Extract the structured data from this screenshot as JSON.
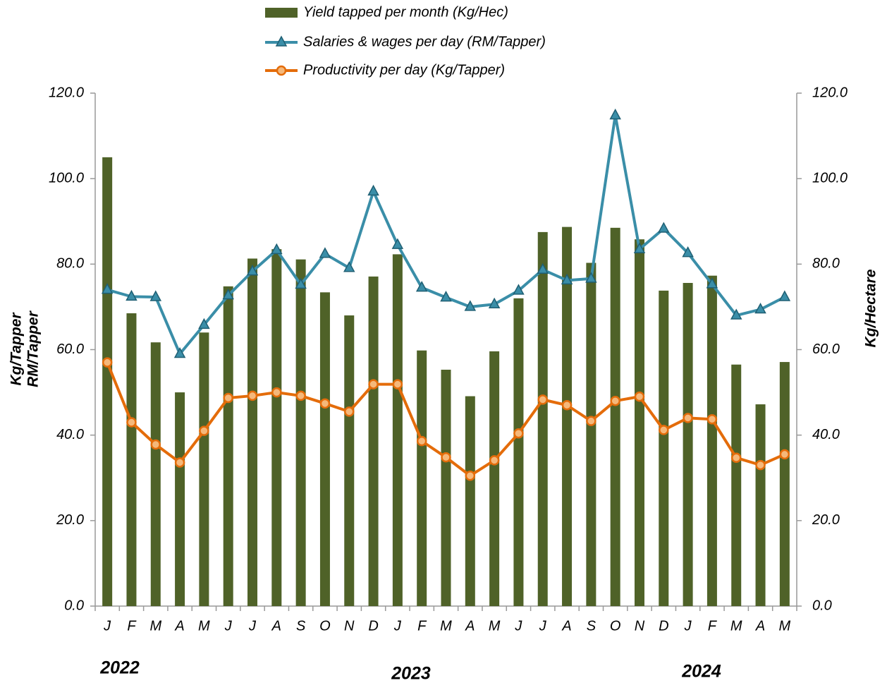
{
  "chart_data": {
    "type": "bar-line",
    "categories": [
      "J",
      "F",
      "M",
      "A",
      "M",
      "J",
      "J",
      "A",
      "S",
      "O",
      "N",
      "D",
      "J",
      "F",
      "M",
      "A",
      "M",
      "J",
      "J",
      "A",
      "S",
      "O",
      "N",
      "D",
      "J",
      "F",
      "M",
      "A",
      "M"
    ],
    "series": [
      {
        "name": "Yield tapped per month (Kg/Hec)",
        "type": "bar",
        "axis": "y2",
        "color": "#4f6228",
        "values": [
          105,
          68.5,
          61.7,
          50,
          64,
          74.8,
          81.3,
          83.5,
          81.1,
          73.4,
          68,
          77.1,
          82.3,
          59.8,
          55.3,
          49.1,
          59.6,
          72,
          87.5,
          88.7,
          80.3,
          88.5,
          85.8,
          73.8,
          75.6,
          77.3,
          56.5,
          47.2,
          57.1
        ]
      },
      {
        "name": "Salaries & wages per day (RM/Tapper)",
        "type": "line",
        "marker": "triangle",
        "color": "#3a8ea8",
        "values": [
          74,
          72.4,
          72.3,
          59,
          65.8,
          72.7,
          78.3,
          83.3,
          75.2,
          82.4,
          79.1,
          97,
          84.5,
          74.5,
          72.2,
          70,
          70.6,
          73.8,
          78.7,
          76.2,
          76.6,
          114.8,
          83.5,
          88.3,
          82.6,
          75.3,
          68,
          69.4,
          72.3
        ]
      },
      {
        "name": "Productivity per day (Kg/Tapper)",
        "type": "line",
        "marker": "circle",
        "color": "#e46c0a",
        "values": [
          57,
          43,
          37.8,
          33.6,
          41,
          48.7,
          49.2,
          50,
          49.2,
          47.4,
          45.5,
          51.9,
          51.9,
          38.6,
          34.8,
          30.5,
          34.1,
          40.4,
          48.3,
          47,
          43.3,
          48,
          49,
          41.2,
          44,
          43.7,
          34.7,
          33,
          35.5
        ]
      }
    ],
    "y_label": [
      "Kg/Tapper",
      "RM/Tapper"
    ],
    "y2_label": "Kg/Hectare",
    "ylim": [
      0,
      120
    ],
    "yticks": [
      {
        "value": 0,
        "label": "0.0"
      },
      {
        "value": 20,
        "label": "20.0"
      },
      {
        "value": 40,
        "label": "40.0"
      },
      {
        "value": 60,
        "label": "60.0"
      },
      {
        "value": 80,
        "label": "80.0"
      },
      {
        "value": 100,
        "label": "100.0"
      },
      {
        "value": 120,
        "label": "120.0"
      }
    ],
    "y2lim": [
      0,
      120
    ],
    "y2ticks": [
      {
        "value": 0,
        "label": "0.0"
      },
      {
        "value": 20,
        "label": "20.0"
      },
      {
        "value": 40,
        "label": "40.0"
      },
      {
        "value": 60,
        "label": "60.0"
      },
      {
        "value": 80,
        "label": "80.0"
      },
      {
        "value": 100,
        "label": "100.0"
      },
      {
        "value": 120,
        "label": "120.0"
      }
    ],
    "annotations": [
      "2022",
      "2023",
      "2024"
    ],
    "grid": false,
    "legend": "top"
  }
}
